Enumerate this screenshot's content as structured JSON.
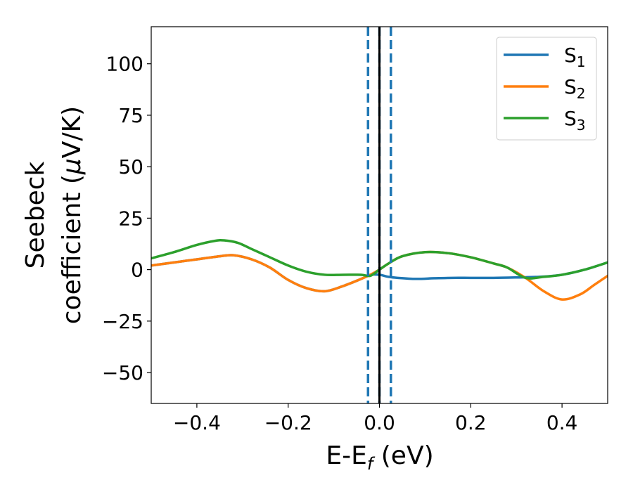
{
  "chart_data": {
    "type": "line",
    "title": "",
    "xlabel": "E-E",
    "xlabel_sub": "f",
    "xlabel_unit": " (eV)",
    "ylabel_line1": "Seebeck",
    "ylabel_line2": "coefficient  (",
    "ylabel_mu": "μ",
    "ylabel_unit": "V/K)",
    "xlim": [
      -0.5,
      0.5
    ],
    "ylim": [
      -65,
      118
    ],
    "xticks": [
      -0.4,
      -0.2,
      0.0,
      0.2,
      0.4
    ],
    "xtick_labels": [
      "−0.4",
      "−0.2",
      "0.0",
      "0.2",
      "0.4"
    ],
    "yticks": [
      -50,
      -25,
      0,
      25,
      50,
      75,
      100
    ],
    "ytick_labels": [
      "−50",
      "−25",
      "0",
      "25",
      "50",
      "75",
      "100"
    ],
    "grid": false,
    "legend_position": "top-right",
    "series": [
      {
        "name": "S",
        "sub": "1",
        "color": "#1f77b4",
        "x": [
          -0.5,
          -0.45,
          -0.4,
          -0.35,
          -0.32,
          -0.28,
          -0.24,
          -0.2,
          -0.16,
          -0.12,
          -0.08,
          -0.04,
          -0.02,
          0.0,
          0.02,
          0.04,
          0.08,
          0.12,
          0.16,
          0.2,
          0.25,
          0.3,
          0.35,
          0.4,
          0.45,
          0.5
        ],
        "y": [
          2,
          3.5,
          5,
          6.5,
          7,
          5,
          1,
          -5,
          -9,
          -10.5,
          -8,
          -4.5,
          -2.5,
          -2.5,
          -3.5,
          -4,
          -4.5,
          -4.2,
          -4,
          -4,
          -4,
          -3.8,
          -3.5,
          -2.5,
          0,
          3.5
        ]
      },
      {
        "name": "S",
        "sub": "2",
        "color": "#ff7f0e",
        "x": [
          -0.5,
          -0.45,
          -0.4,
          -0.35,
          -0.32,
          -0.28,
          -0.24,
          -0.2,
          -0.16,
          -0.12,
          -0.08,
          -0.04,
          -0.02,
          0.0,
          0.02,
          0.05,
          0.1,
          0.15,
          0.2,
          0.25,
          0.28,
          0.32,
          0.36,
          0.4,
          0.44,
          0.47,
          0.5
        ],
        "y": [
          2,
          3.5,
          5,
          6.5,
          7,
          5,
          1,
          -5,
          -9,
          -10.5,
          -8,
          -4.5,
          -2.5,
          0,
          3,
          6.5,
          8.5,
          8,
          6,
          3,
          1,
          -4,
          -10.5,
          -14.5,
          -12,
          -7.5,
          -3
        ]
      },
      {
        "name": "S",
        "sub": "3",
        "color": "#2ca02c",
        "x": [
          -0.5,
          -0.45,
          -0.4,
          -0.36,
          -0.34,
          -0.31,
          -0.28,
          -0.24,
          -0.2,
          -0.16,
          -0.12,
          -0.08,
          -0.04,
          -0.02,
          0.0,
          0.02,
          0.05,
          0.1,
          0.15,
          0.2,
          0.25,
          0.28,
          0.32,
          0.36,
          0.4,
          0.45,
          0.5
        ],
        "y": [
          5.5,
          8.5,
          12,
          14,
          14.2,
          13,
          10,
          6,
          2,
          -1,
          -2.5,
          -2.5,
          -2.5,
          -3,
          0,
          3,
          6.5,
          8.5,
          8,
          6,
          3,
          1,
          -4,
          -3.5,
          -2.5,
          0,
          3.5
        ]
      }
    ],
    "vlines": [
      {
        "x": -0.025,
        "color": "#1f77b4",
        "style": "dashed"
      },
      {
        "x": 0.0,
        "color": "#1f77b4",
        "style": "dashed"
      },
      {
        "x": 0.025,
        "color": "#1f77b4",
        "style": "dashed"
      },
      {
        "x": 0.0,
        "color": "#000000",
        "style": "solid"
      }
    ]
  }
}
